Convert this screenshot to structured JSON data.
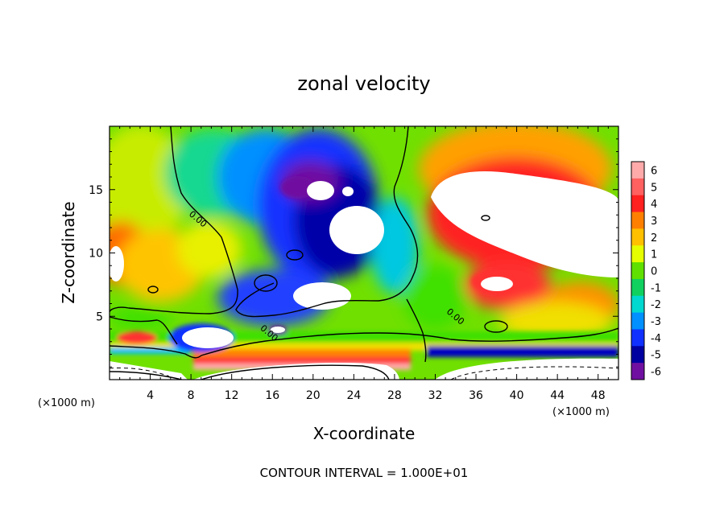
{
  "chart_data": {
    "type": "heatmap",
    "title": "zonal velocity",
    "xlabel": "X-coordinate",
    "ylabel": "Z-coordinate",
    "x_unit": "(×1000 m)",
    "y_unit": "(×1000 m)",
    "xlim": [
      0,
      50
    ],
    "ylim": [
      0,
      20
    ],
    "x_ticks": [
      4,
      8,
      12,
      16,
      20,
      24,
      28,
      32,
      36,
      40,
      44,
      48
    ],
    "y_ticks": [
      5,
      10,
      15
    ],
    "colorbar": {
      "levels": [
        6,
        5,
        4,
        3,
        2,
        1,
        0,
        -1,
        -2,
        -3,
        -4,
        -5,
        -6
      ],
      "colors": [
        "#ffaaaa",
        "#ff6060",
        "#ff2020",
        "#ff8000",
        "#ffc000",
        "#e6ff00",
        "#60e000",
        "#10d060",
        "#00d8d0",
        "#0090ff",
        "#1030ff",
        "#0000a0",
        "#7010a0"
      ]
    },
    "contour_labels": [
      {
        "text": "0.00",
        "x": 8.5,
        "z": 12.5
      },
      {
        "text": "0.00",
        "x": 15.5,
        "z": 3.5
      },
      {
        "text": "0.00",
        "x": 33.8,
        "z": 4.8
      }
    ],
    "footer": "CONTOUR INTERVAL = 1.000E+01"
  }
}
